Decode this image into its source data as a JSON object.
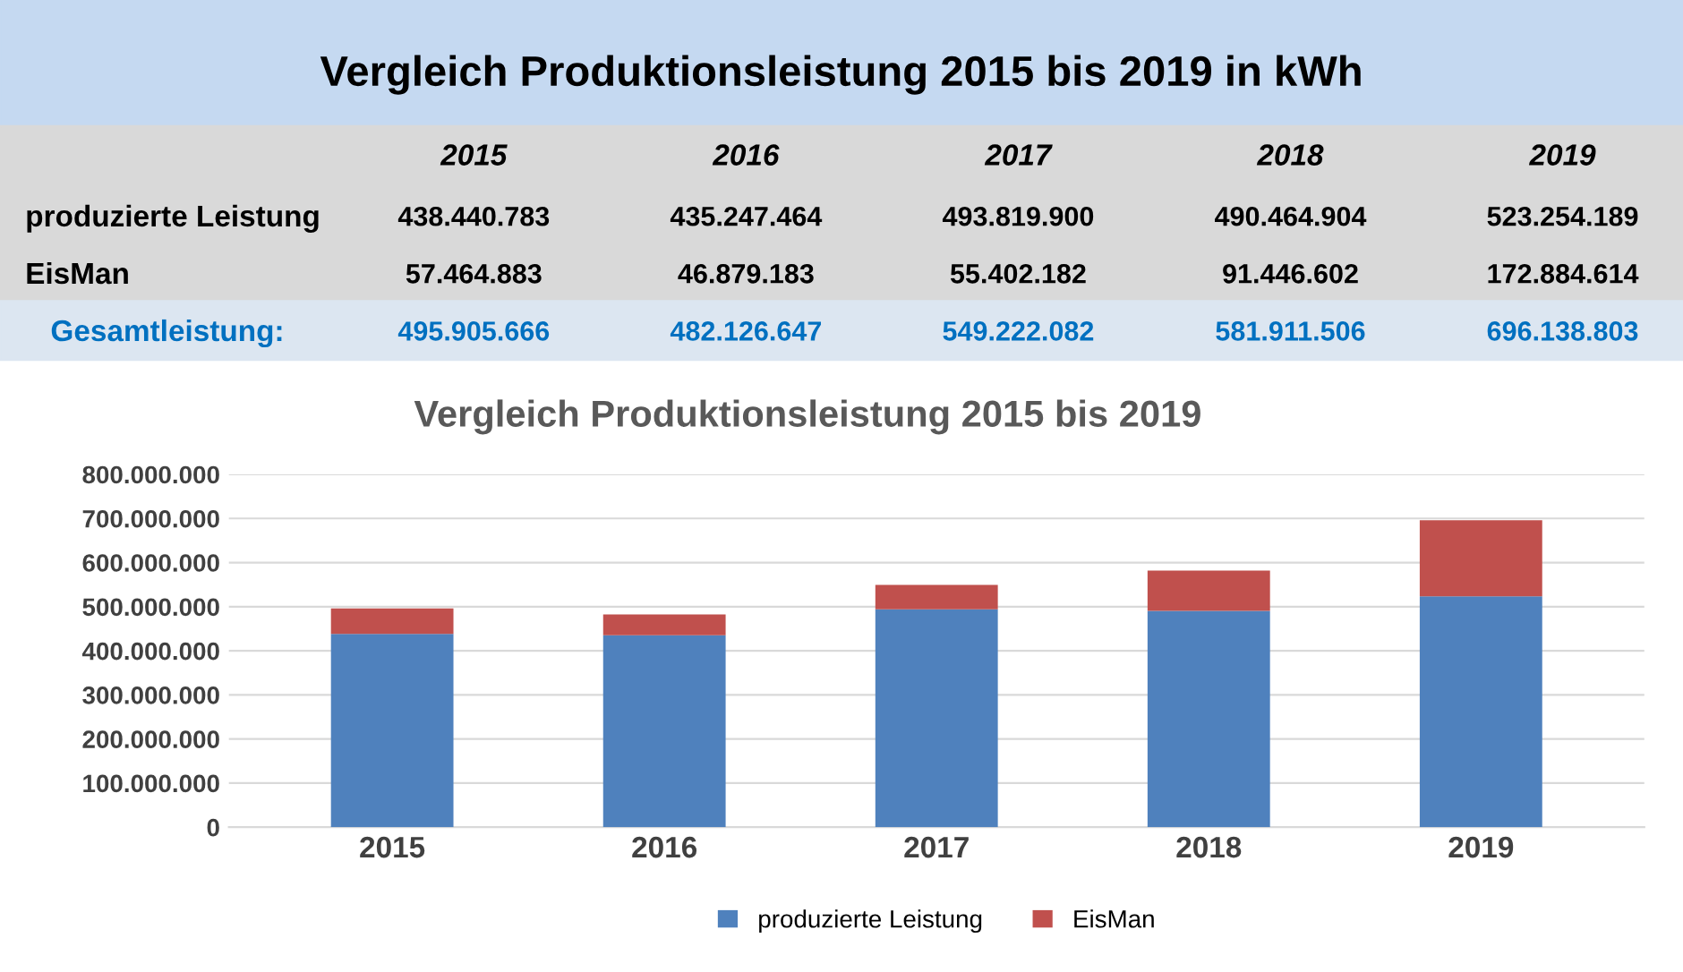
{
  "chart_data": {
    "type": "bar",
    "title": "Vergleich Produktionsleistung 2015 bis 2019 in kWh",
    "subtitle": "Vergleich Produktionsleistung 2015 bis 2019",
    "categories": [
      "2015",
      "2016",
      "2017",
      "2018",
      "2019"
    ],
    "stacked": true,
    "series": [
      {
        "name": "produzierte Leistung",
        "color": "#4f81bd",
        "values": [
          438440783,
          435247464,
          493819900,
          490464904,
          523254189
        ],
        "value_labels": [
          "438.440.783",
          "435.247.464",
          "493.819.900",
          "490.464.904",
          "523.254.189"
        ]
      },
      {
        "name": "EisMan",
        "color": "#c0504d",
        "values": [
          57464883,
          46879183,
          55402182,
          91446602,
          172884614
        ],
        "value_labels": [
          "57.464.883",
          "46.879.183",
          "55.402.182",
          "91.446.602",
          "172.884.614"
        ]
      }
    ],
    "annotations": [
      "Gesamtleistung:",
      "495.905.666",
      "482.126.647",
      "549.222.082",
      "581.911.506",
      "696.138.803"
    ],
    "ylim": [
      0,
      800000000
    ],
    "yticks": [
      0,
      {
        "value": 100000000,
        "label": "100.000.000"
      },
      {
        "value": 200000000,
        "label": "200.000.000"
      },
      {
        "value": 300000000,
        "label": "300.000.000"
      },
      {
        "value": 400000000,
        "label": "400.000.000"
      },
      {
        "value": 500000000,
        "label": "500.000.000"
      },
      {
        "value": 600000000,
        "label": "600.000.000"
      },
      {
        "value": 700000000,
        "label": "700.000.000"
      },
      {
        "value": 800000000,
        "label": "800.000.000"
      }
    ],
    "grid": "y",
    "legend": "bottom"
  }
}
